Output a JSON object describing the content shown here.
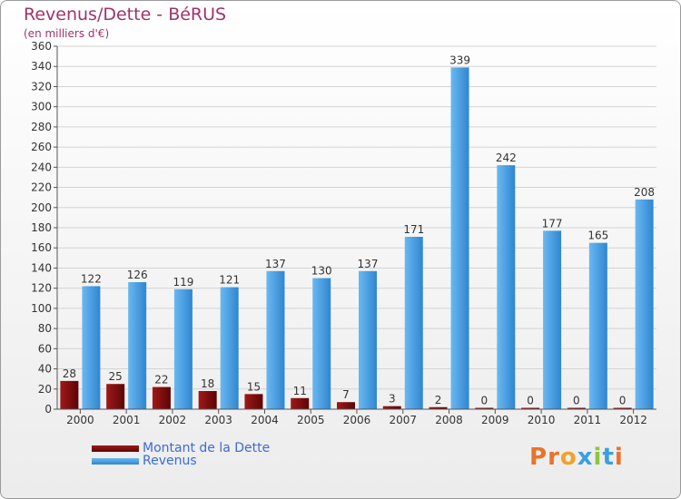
{
  "colors": {
    "dette": "#7a0b0b",
    "revenus": "#4aa3e6",
    "title": "#a0336a",
    "legend_text": "#3b6bd6"
  },
  "header": {
    "title": "Revenus/Dette - BéRUS",
    "subtitle": "(en milliers d'€)"
  },
  "legend": {
    "dette_label": "Montant de la Dette",
    "revenus_label": "Revenus"
  },
  "logo": {
    "text": "Proxiti",
    "letters": [
      "P",
      "r",
      "o",
      "x",
      "i",
      "t",
      "i"
    ]
  },
  "chart_data": {
    "type": "bar",
    "title": "Revenus/Dette - BéRUS",
    "ylabel": "(en milliers d'€)",
    "xlabel": "",
    "ylim": [
      0,
      360
    ],
    "yticks": [
      0,
      20,
      40,
      60,
      80,
      100,
      120,
      140,
      160,
      180,
      200,
      220,
      240,
      260,
      280,
      300,
      320,
      340,
      360
    ],
    "grid": true,
    "categories": [
      "2000",
      "2001",
      "2002",
      "2003",
      "2004",
      "2005",
      "2006",
      "2007",
      "2008",
      "2009",
      "2010",
      "2011",
      "2012"
    ],
    "series": [
      {
        "name": "Montant de la Dette",
        "values": [
          28,
          25,
          22,
          18,
          15,
          11,
          7,
          3,
          2,
          0,
          0,
          0,
          0
        ]
      },
      {
        "name": "Revenus",
        "values": [
          122,
          126,
          119,
          121,
          137,
          130,
          137,
          171,
          339,
          242,
          177,
          165,
          208
        ]
      }
    ],
    "legend_position": "bottom-left"
  }
}
